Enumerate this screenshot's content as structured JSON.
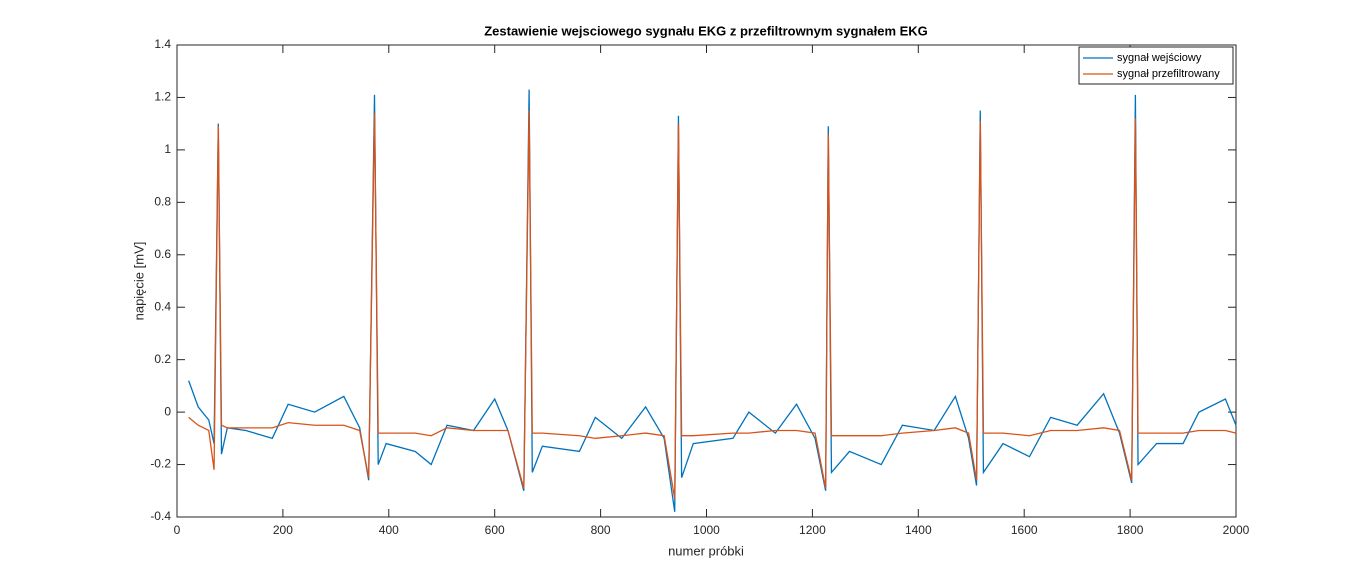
{
  "chart_data": {
    "type": "line",
    "title": "Zestawienie wejsciowego sygnału EKG z przefiltrownym sygnałem EKG",
    "x_label": "numer próbki",
    "y_label": "napięcie [mV]",
    "x": [
      22,
      40,
      60,
      70,
      78,
      84,
      95,
      130,
      180,
      210,
      260,
      315,
      345,
      362,
      373,
      380,
      395,
      450,
      480,
      510,
      560,
      600,
      625,
      655,
      665,
      671,
      690,
      760,
      790,
      840,
      885,
      920,
      940,
      947,
      953,
      975,
      1050,
      1080,
      1130,
      1170,
      1205,
      1225,
      1230,
      1236,
      1270,
      1330,
      1370,
      1430,
      1470,
      1495,
      1510,
      1517,
      1523,
      1560,
      1610,
      1650,
      1700,
      1750,
      1780,
      1803,
      1810,
      1815,
      1850,
      1900,
      1930,
      1980,
      2000
    ],
    "series": [
      {
        "name": "sygnał wejściowy",
        "color": "#0072bd",
        "values": [
          0.12,
          0.02,
          -0.03,
          -0.12,
          1.1,
          -0.16,
          -0.06,
          -0.07,
          -0.1,
          0.03,
          0.0,
          0.06,
          -0.06,
          -0.26,
          1.21,
          -0.2,
          -0.12,
          -0.15,
          -0.2,
          -0.05,
          -0.07,
          0.05,
          -0.07,
          -0.3,
          1.23,
          -0.23,
          -0.13,
          -0.15,
          -0.02,
          -0.1,
          0.02,
          -0.1,
          -0.38,
          1.13,
          -0.25,
          -0.12,
          -0.1,
          0.0,
          -0.08,
          0.03,
          -0.1,
          -0.3,
          1.09,
          -0.23,
          -0.15,
          -0.2,
          -0.05,
          -0.07,
          0.06,
          -0.1,
          -0.28,
          1.15,
          -0.23,
          -0.12,
          -0.17,
          -0.02,
          -0.05,
          0.07,
          -0.08,
          -0.27,
          1.21,
          -0.2,
          -0.12,
          -0.12,
          0.0,
          0.05,
          -0.05
        ]
      },
      {
        "name": "sygnał przefiltrowany",
        "color": "#d95319",
        "values": [
          -0.02,
          -0.05,
          -0.07,
          -0.22,
          1.09,
          -0.05,
          -0.06,
          -0.06,
          -0.06,
          -0.04,
          -0.05,
          -0.05,
          -0.07,
          -0.25,
          1.14,
          -0.08,
          -0.08,
          -0.08,
          -0.09,
          -0.06,
          -0.07,
          -0.07,
          -0.07,
          -0.29,
          1.15,
          -0.08,
          -0.08,
          -0.09,
          -0.1,
          -0.09,
          -0.08,
          -0.09,
          -0.33,
          1.1,
          -0.09,
          -0.09,
          -0.08,
          -0.08,
          -0.07,
          -0.07,
          -0.08,
          -0.29,
          1.06,
          -0.09,
          -0.09,
          -0.09,
          -0.08,
          -0.07,
          -0.06,
          -0.08,
          -0.26,
          1.11,
          -0.08,
          -0.08,
          -0.09,
          -0.07,
          -0.07,
          -0.06,
          -0.07,
          -0.26,
          1.12,
          -0.08,
          -0.08,
          -0.08,
          -0.07,
          -0.07,
          -0.08
        ]
      }
    ],
    "xlim": [
      0,
      2000
    ],
    "xticks": [
      0,
      200,
      400,
      600,
      800,
      1000,
      1200,
      1400,
      1600,
      1800,
      2000
    ],
    "ylim": [
      -0.4,
      1.4
    ],
    "yticks": [
      -0.4,
      -0.2,
      0,
      0.2,
      0.4,
      0.6,
      0.8,
      1,
      1.2,
      1.4
    ],
    "grid": false,
    "legend": "northeast"
  }
}
